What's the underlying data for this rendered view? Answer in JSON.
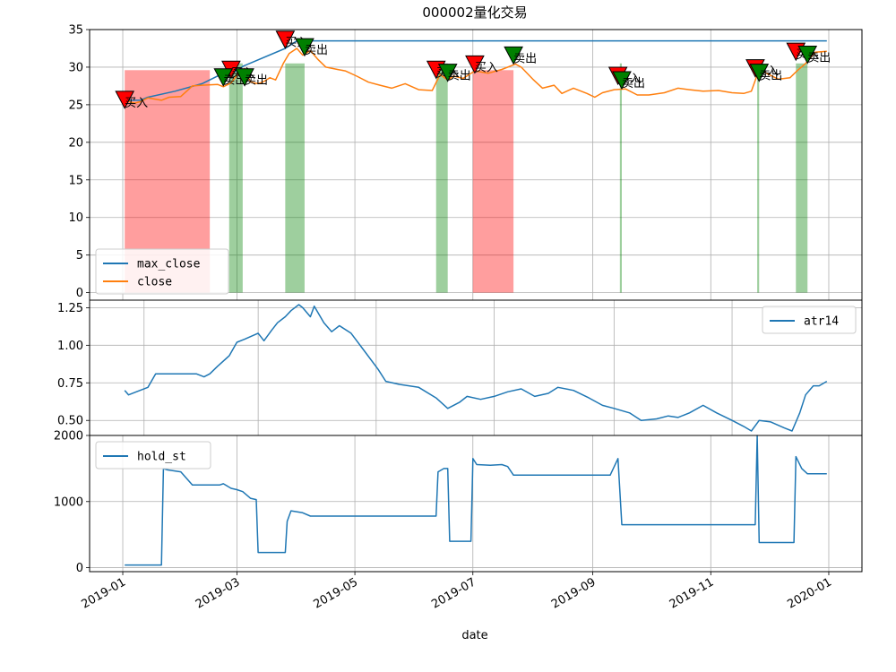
{
  "figure": {
    "title": "000002量化交易",
    "xlabel": "date"
  },
  "chart_data": [
    {
      "type": "line",
      "panel": "price",
      "ylim": [
        -1,
        35
      ],
      "yticks": [
        0,
        5,
        10,
        15,
        20,
        25,
        30,
        35
      ],
      "grid": true,
      "legend_position": "lower-left",
      "series": [
        {
          "name": "max_close",
          "color": "#1f77b4",
          "points": [
            [
              "2019-01-02",
              25.6
            ],
            [
              "2019-01-10",
              25.6
            ],
            [
              "2019-01-14",
              26.0
            ],
            [
              "2019-01-28",
              26.8
            ],
            [
              "2019-02-11",
              27.8
            ],
            [
              "2019-02-22",
              29.2
            ],
            [
              "2019-03-01",
              29.5
            ],
            [
              "2019-03-04",
              30.1
            ],
            [
              "2019-03-26",
              32.5
            ],
            [
              "2019-04-01",
              33.5
            ],
            [
              "2019-12-31",
              33.5
            ]
          ]
        },
        {
          "name": "close",
          "color": "#ff7f0e",
          "points": [
            [
              "2019-01-02",
              25.6
            ],
            [
              "2019-01-07",
              25.2
            ],
            [
              "2019-01-10",
              25.4
            ],
            [
              "2019-01-14",
              25.9
            ],
            [
              "2019-01-21",
              25.6
            ],
            [
              "2019-01-25",
              26.0
            ],
            [
              "2019-01-31",
              26.1
            ],
            [
              "2019-02-06",
              27.5
            ],
            [
              "2019-02-11",
              27.6
            ],
            [
              "2019-02-19",
              27.7
            ],
            [
              "2019-02-22",
              27.4
            ],
            [
              "2019-02-26",
              27.9
            ],
            [
              "2019-03-01",
              28.9
            ],
            [
              "2019-03-05",
              29.8
            ],
            [
              "2019-03-08",
              28.0
            ],
            [
              "2019-03-12",
              27.8
            ],
            [
              "2019-03-15",
              28.1
            ],
            [
              "2019-03-18",
              28.6
            ],
            [
              "2019-03-21",
              28.3
            ],
            [
              "2019-03-25",
              30.5
            ],
            [
              "2019-03-28",
              31.8
            ],
            [
              "2019-04-01",
              32.5
            ],
            [
              "2019-04-04",
              31.6
            ],
            [
              "2019-04-08",
              32.2
            ],
            [
              "2019-04-12",
              31.0
            ],
            [
              "2019-04-16",
              30.0
            ],
            [
              "2019-04-22",
              29.7
            ],
            [
              "2019-04-26",
              29.5
            ],
            [
              "2019-05-02",
              28.8
            ],
            [
              "2019-05-08",
              28.0
            ],
            [
              "2019-05-14",
              27.6
            ],
            [
              "2019-05-20",
              27.2
            ],
            [
              "2019-05-27",
              27.8
            ],
            [
              "2019-06-03",
              27.0
            ],
            [
              "2019-06-10",
              26.9
            ],
            [
              "2019-06-14",
              29.0
            ],
            [
              "2019-06-18",
              28.3
            ],
            [
              "2019-06-21",
              28.8
            ],
            [
              "2019-06-26",
              28.5
            ],
            [
              "2019-07-02",
              29.5
            ],
            [
              "2019-07-09",
              29.2
            ],
            [
              "2019-07-16",
              29.7
            ],
            [
              "2019-07-23",
              30.4
            ],
            [
              "2019-07-26",
              30.0
            ],
            [
              "2019-08-01",
              28.4
            ],
            [
              "2019-08-06",
              27.2
            ],
            [
              "2019-08-12",
              27.6
            ],
            [
              "2019-08-16",
              26.5
            ],
            [
              "2019-08-22",
              27.2
            ],
            [
              "2019-08-29",
              26.5
            ],
            [
              "2019-09-02",
              26.0
            ],
            [
              "2019-09-06",
              26.6
            ],
            [
              "2019-09-12",
              27.0
            ],
            [
              "2019-09-18",
              27.1
            ],
            [
              "2019-09-24",
              26.3
            ],
            [
              "2019-09-30",
              26.3
            ],
            [
              "2019-10-08",
              26.6
            ],
            [
              "2019-10-15",
              27.2
            ],
            [
              "2019-10-21",
              27.0
            ],
            [
              "2019-10-28",
              26.8
            ],
            [
              "2019-11-05",
              26.9
            ],
            [
              "2019-11-12",
              26.6
            ],
            [
              "2019-11-18",
              26.5
            ],
            [
              "2019-11-22",
              26.8
            ],
            [
              "2019-11-26",
              29.7
            ],
            [
              "2019-12-02",
              28.9
            ],
            [
              "2019-12-06",
              28.4
            ],
            [
              "2019-12-12",
              28.6
            ],
            [
              "2019-12-16",
              29.6
            ],
            [
              "2019-12-20",
              30.5
            ],
            [
              "2019-12-25",
              32.0
            ],
            [
              "2019-12-31",
              32.1
            ]
          ]
        }
      ],
      "buy_spans": [
        {
          "start": "2019-01-02",
          "end": "2019-02-15",
          "color": "#ff0000"
        },
        {
          "start": "2019-07-01",
          "end": "2019-07-22",
          "color": "#ff0000"
        }
      ],
      "sell_spans": [
        {
          "start": "2019-02-25",
          "end": "2019-03-04",
          "color": "#008000"
        },
        {
          "start": "2019-03-26",
          "end": "2019-04-05",
          "color": "#008000"
        },
        {
          "start": "2019-06-12",
          "end": "2019-06-18",
          "color": "#008000"
        },
        {
          "start": "2019-09-15",
          "end": "2019-09-16",
          "color": "#008000"
        },
        {
          "start": "2019-11-25",
          "end": "2019-11-26",
          "color": "#008000"
        },
        {
          "start": "2019-12-15",
          "end": "2019-12-21",
          "color": "#008000"
        }
      ],
      "buy_signals": [
        {
          "date": "2019-01-02",
          "price": 25.6,
          "label": "买入"
        },
        {
          "date": "2019-02-26",
          "price": 29.6,
          "label": "买入"
        },
        {
          "date": "2019-03-26",
          "price": 33.6,
          "label": "买入"
        },
        {
          "date": "2019-06-12",
          "price": 29.6,
          "label": "买入"
        },
        {
          "date": "2019-07-02",
          "price": 30.3,
          "label": "买入"
        },
        {
          "date": "2019-09-14",
          "price": 28.8,
          "label": "买入"
        },
        {
          "date": "2019-11-24",
          "price": 29.8,
          "label": "买入"
        },
        {
          "date": "2019-12-15",
          "price": 32.0,
          "label": "买入"
        }
      ],
      "sell_signals": [
        {
          "date": "2019-02-22",
          "price": 28.6,
          "label": "卖出"
        },
        {
          "date": "2019-03-05",
          "price": 28.6,
          "label": "卖出"
        },
        {
          "date": "2019-04-05",
          "price": 32.6,
          "label": "卖出"
        },
        {
          "date": "2019-06-18",
          "price": 29.2,
          "label": "卖出"
        },
        {
          "date": "2019-07-22",
          "price": 31.5,
          "label": "卖出"
        },
        {
          "date": "2019-09-16",
          "price": 28.2,
          "label": "卖出"
        },
        {
          "date": "2019-11-26",
          "price": 29.2,
          "label": "卖出"
        },
        {
          "date": "2019-12-21",
          "price": 31.6,
          "label": "卖出"
        }
      ]
    },
    {
      "type": "line",
      "panel": "atr",
      "ylim": [
        0.4,
        1.3
      ],
      "yticks": [
        0.5,
        0.75,
        1.0,
        1.25
      ],
      "ytick_labels": [
        "0.50",
        "0.75",
        "1.00",
        "1.25"
      ],
      "grid": true,
      "legend_position": "upper-right",
      "series": [
        {
          "name": "atr14",
          "color": "#1f77b4",
          "points": [
            [
              "2019-01-02",
              0.7
            ],
            [
              "2019-01-04",
              0.67
            ],
            [
              "2019-01-08",
              0.69
            ],
            [
              "2019-01-14",
              0.72
            ],
            [
              "2019-01-18",
              0.81
            ],
            [
              "2019-01-31",
              0.81
            ],
            [
              "2019-02-08",
              0.81
            ],
            [
              "2019-02-12",
              0.79
            ],
            [
              "2019-02-15",
              0.81
            ],
            [
              "2019-02-19",
              0.86
            ],
            [
              "2019-02-25",
              0.93
            ],
            [
              "2019-03-01",
              1.02
            ],
            [
              "2019-03-05",
              1.04
            ],
            [
              "2019-03-12",
              1.08
            ],
            [
              "2019-03-15",
              1.03
            ],
            [
              "2019-03-19",
              1.1
            ],
            [
              "2019-03-22",
              1.15
            ],
            [
              "2019-03-26",
              1.19
            ],
            [
              "2019-03-29",
              1.23
            ],
            [
              "2019-04-02",
              1.27
            ],
            [
              "2019-04-04",
              1.25
            ],
            [
              "2019-04-08",
              1.19
            ],
            [
              "2019-04-10",
              1.26
            ],
            [
              "2019-04-15",
              1.15
            ],
            [
              "2019-04-19",
              1.09
            ],
            [
              "2019-04-23",
              1.13
            ],
            [
              "2019-04-29",
              1.08
            ],
            [
              "2019-05-06",
              0.96
            ],
            [
              "2019-05-13",
              0.84
            ],
            [
              "2019-05-17",
              0.76
            ],
            [
              "2019-05-24",
              0.74
            ],
            [
              "2019-06-03",
              0.72
            ],
            [
              "2019-06-12",
              0.65
            ],
            [
              "2019-06-18",
              0.58
            ],
            [
              "2019-06-24",
              0.62
            ],
            [
              "2019-06-28",
              0.66
            ],
            [
              "2019-07-05",
              0.64
            ],
            [
              "2019-07-12",
              0.66
            ],
            [
              "2019-07-19",
              0.69
            ],
            [
              "2019-07-26",
              0.71
            ],
            [
              "2019-08-02",
              0.66
            ],
            [
              "2019-08-09",
              0.68
            ],
            [
              "2019-08-14",
              0.72
            ],
            [
              "2019-08-22",
              0.7
            ],
            [
              "2019-08-30",
              0.65
            ],
            [
              "2019-09-06",
              0.6
            ],
            [
              "2019-09-12",
              0.58
            ],
            [
              "2019-09-20",
              0.55
            ],
            [
              "2019-09-26",
              0.5
            ],
            [
              "2019-10-04",
              0.51
            ],
            [
              "2019-10-10",
              0.53
            ],
            [
              "2019-10-15",
              0.52
            ],
            [
              "2019-10-21",
              0.55
            ],
            [
              "2019-10-28",
              0.6
            ],
            [
              "2019-11-04",
              0.55
            ],
            [
              "2019-11-12",
              0.5
            ],
            [
              "2019-11-18",
              0.46
            ],
            [
              "2019-11-22",
              0.43
            ],
            [
              "2019-11-26",
              0.5
            ],
            [
              "2019-12-02",
              0.49
            ],
            [
              "2019-12-09",
              0.45
            ],
            [
              "2019-12-13",
              0.43
            ],
            [
              "2019-12-17",
              0.55
            ],
            [
              "2019-12-20",
              0.67
            ],
            [
              "2019-12-24",
              0.73
            ],
            [
              "2019-12-27",
              0.73
            ],
            [
              "2019-12-31",
              0.76
            ]
          ]
        }
      ]
    },
    {
      "type": "line",
      "panel": "hold",
      "ylim": [
        -60,
        2000
      ],
      "yticks": [
        0,
        1000,
        2000
      ],
      "grid": true,
      "legend_position": "upper-left",
      "series": [
        {
          "name": "hold_st",
          "color": "#1f77b4",
          "points": [
            [
              "2019-01-02",
              40
            ],
            [
              "2019-01-21",
              40
            ],
            [
              "2019-01-22",
              1500
            ],
            [
              "2019-01-24",
              1480
            ],
            [
              "2019-01-31",
              1450
            ],
            [
              "2019-02-06",
              1250
            ],
            [
              "2019-02-20",
              1250
            ],
            [
              "2019-02-22",
              1270
            ],
            [
              "2019-02-26",
              1200
            ],
            [
              "2019-03-01",
              1180
            ],
            [
              "2019-03-04",
              1150
            ],
            [
              "2019-03-08",
              1050
            ],
            [
              "2019-03-11",
              1030
            ],
            [
              "2019-03-12",
              230
            ],
            [
              "2019-03-26",
              230
            ],
            [
              "2019-03-27",
              700
            ],
            [
              "2019-03-29",
              860
            ],
            [
              "2019-04-04",
              830
            ],
            [
              "2019-04-08",
              780
            ],
            [
              "2019-06-12",
              780
            ],
            [
              "2019-06-13",
              1450
            ],
            [
              "2019-06-16",
              1500
            ],
            [
              "2019-06-18",
              1500
            ],
            [
              "2019-06-19",
              400
            ],
            [
              "2019-06-30",
              400
            ],
            [
              "2019-07-01",
              1650
            ],
            [
              "2019-07-03",
              1560
            ],
            [
              "2019-07-10",
              1550
            ],
            [
              "2019-07-16",
              1560
            ],
            [
              "2019-07-19",
              1530
            ],
            [
              "2019-07-22",
              1400
            ],
            [
              "2019-09-10",
              1400
            ],
            [
              "2019-09-14",
              1650
            ],
            [
              "2019-09-16",
              650
            ],
            [
              "2019-11-24",
              650
            ],
            [
              "2019-11-25",
              2000
            ],
            [
              "2019-11-26",
              380
            ],
            [
              "2019-12-14",
              380
            ],
            [
              "2019-12-15",
              1680
            ],
            [
              "2019-12-18",
              1500
            ],
            [
              "2019-12-21",
              1420
            ],
            [
              "2019-12-31",
              1420
            ]
          ]
        }
      ]
    }
  ],
  "x_axis": {
    "start": "2019-01-02",
    "end": "2019-12-31",
    "ticks": [
      {
        "date": "2019-01-01",
        "label": "2019-01"
      },
      {
        "date": "2019-03-01",
        "label": "2019-03"
      },
      {
        "date": "2019-05-01",
        "label": "2019-05"
      },
      {
        "date": "2019-07-01",
        "label": "2019-07"
      },
      {
        "date": "2019-09-01",
        "label": "2019-09"
      },
      {
        "date": "2019-11-01",
        "label": "2019-11"
      },
      {
        "date": "2020-01-01",
        "label": "2020-01"
      }
    ]
  },
  "atr_x_ticks": [
    "2019-01-12",
    "2019-03-12",
    "2019-05-12",
    "2019-07-12",
    "2019-09-12",
    "2019-11-12"
  ],
  "colors": {
    "blue": "#1f77b4",
    "orange": "#ff7f0e",
    "buy": "#ff0000",
    "sell": "#008000"
  }
}
